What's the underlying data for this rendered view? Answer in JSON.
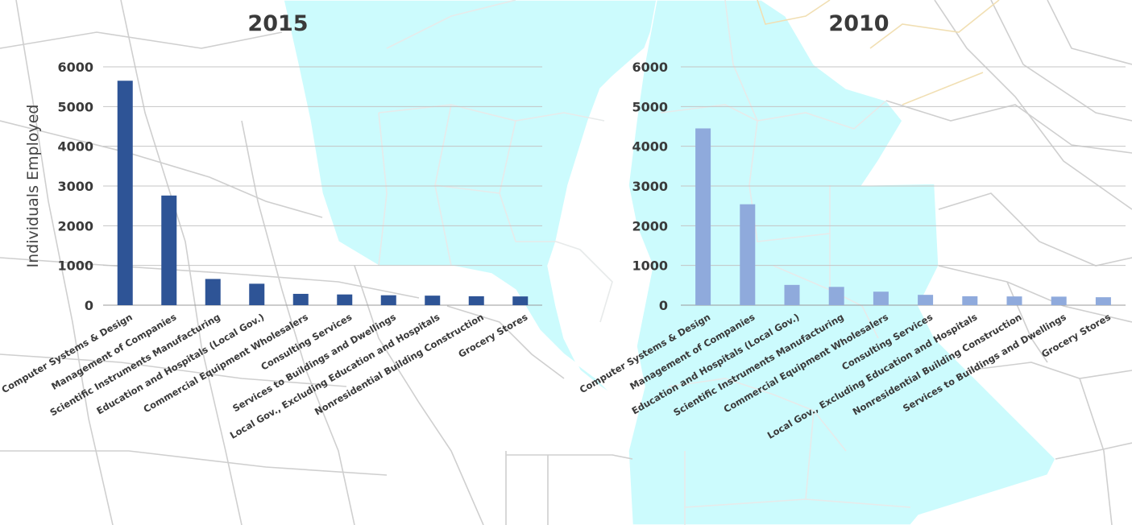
{
  "background": {
    "description_icon": "county-map",
    "region_fill": "#ccfbfd",
    "line_color": "#cfcfcf",
    "border_color": "#f1dfb3"
  },
  "chart_data": [
    {
      "type": "bar",
      "title": "2015",
      "ylabel": "Individuals Employed",
      "xlabel": "",
      "ylim": [
        0,
        6000
      ],
      "yticks": [
        0,
        1000,
        2000,
        3000,
        4000,
        5000,
        6000
      ],
      "grid": true,
      "color": "#2e5496",
      "categories": [
        "Computer Systems & Design",
        "Management of Companies",
        "Scientific Instruments Manufacturing",
        "Education and Hospitals (Local Gov.)",
        "Commercial Equipment Wholesalers",
        "Consulting Services",
        "Services to Buildings and Dwellings",
        "Local Gov., Excluding Education and Hospitals",
        "Nonresidential Building Construction",
        "Grocery Stores"
      ],
      "values": [
        5650,
        2760,
        660,
        540,
        285,
        270,
        250,
        240,
        225,
        220
      ]
    },
    {
      "type": "bar",
      "title": "2010",
      "ylabel": "",
      "xlabel": "",
      "ylim": [
        0,
        6000
      ],
      "yticks": [
        0,
        1000,
        2000,
        3000,
        4000,
        5000,
        6000
      ],
      "grid": true,
      "color": "#8faadc",
      "categories": [
        "Computer Systems & Design",
        "Management of Companies",
        "Education and Hospitals (Local Gov.)",
        "Scientific Instruments Manufacturing",
        "Commercial Equipment Wholesalers",
        "Consulting Services",
        "Local Gov., Excluding Education and Hospitals",
        "Nonresidential Building Construction",
        "Services to Buildings and Dwellings",
        "Grocery Stores"
      ],
      "values": [
        4450,
        2540,
        510,
        460,
        340,
        260,
        225,
        220,
        215,
        200
      ]
    }
  ]
}
